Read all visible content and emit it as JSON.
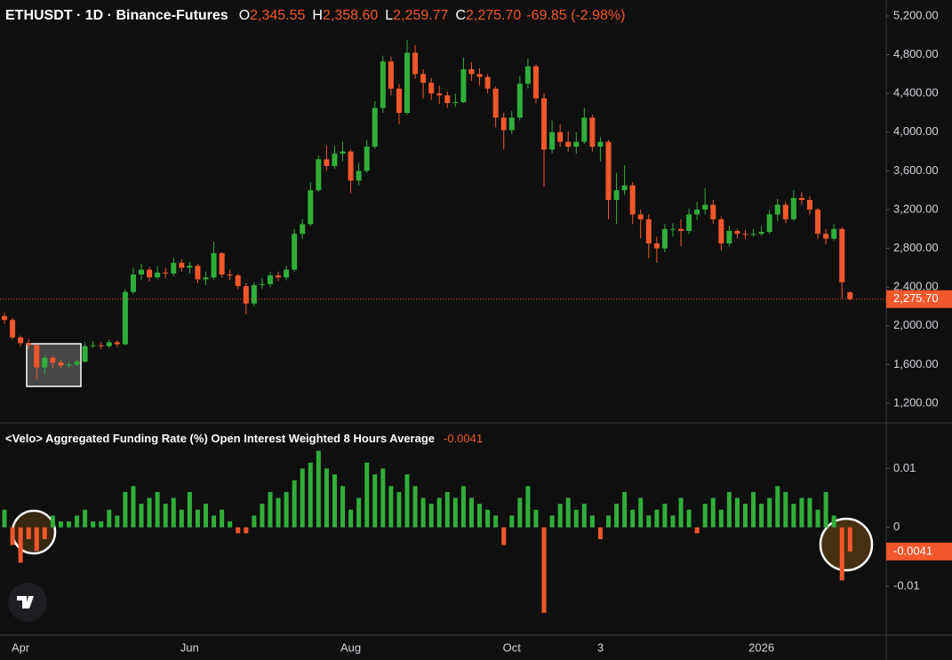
{
  "chart_data": [
    {
      "type": "candlestick",
      "title": "ETHUSDT · 1D · Binance-Futures",
      "header": [
        {
          "label": "O",
          "value": "2,345.55"
        },
        {
          "label": "H",
          "value": "2,358.60"
        },
        {
          "label": "L",
          "value": "2,259.77"
        },
        {
          "label": "C",
          "value": "2,275.70"
        }
      ],
      "change": "-69.85 (-2.98%)",
      "up_color": "#2fae3a",
      "down_color": "#f2572b",
      "categories": [
        null,
        null,
        "Apr",
        null,
        null,
        null,
        null,
        null,
        null,
        null,
        null,
        null,
        null,
        null,
        null,
        null,
        null,
        null,
        null,
        null,
        null,
        null,
        null,
        "Jun",
        null,
        null,
        null,
        null,
        null,
        null,
        null,
        null,
        null,
        null,
        null,
        null,
        null,
        null,
        null,
        null,
        null,
        null,
        null,
        "Aug",
        null,
        null,
        null,
        null,
        null,
        null,
        null,
        null,
        null,
        null,
        null,
        null,
        null,
        null,
        null,
        null,
        null,
        null,
        null,
        "Oct",
        null,
        null,
        null,
        null,
        null,
        null,
        null,
        null,
        null,
        null,
        "3",
        null,
        null,
        null,
        null,
        null,
        null,
        null,
        null,
        null,
        null,
        null,
        null,
        null,
        null,
        null,
        null,
        null,
        null,
        null,
        "2026",
        null,
        null,
        null,
        null,
        null,
        null,
        null,
        null,
        null,
        null,
        null
      ],
      "open": [
        2100,
        2060,
        1880,
        1820,
        1800,
        1570,
        1670,
        1620,
        1590,
        1600,
        1630,
        1790,
        1800,
        1790,
        1830,
        1810,
        2350,
        2530,
        2580,
        2500,
        2550,
        2540,
        2650,
        2600,
        2620,
        2480,
        2500,
        2750,
        2530,
        2520,
        2410,
        2230,
        2420,
        2430,
        2520,
        2500,
        2580,
        2950,
        3050,
        3400,
        3720,
        3650,
        3780,
        3800,
        3500,
        3600,
        3850,
        4250,
        4730,
        4450,
        4200,
        4820,
        4600,
        4510,
        4400,
        4380,
        4300,
        4310,
        4650,
        4600,
        4570,
        4450,
        4150,
        4020,
        4150,
        4500,
        4680,
        4350,
        3820,
        4000,
        3900,
        3850,
        3900,
        4150,
        3850,
        3900,
        3300,
        3400,
        3450,
        3150,
        3100,
        2850,
        2800,
        3000,
        3000,
        2980,
        3150,
        3200,
        3250,
        3100,
        2850,
        2980,
        2950,
        2940,
        2950,
        2970,
        3150,
        3250,
        3100,
        3320,
        3300,
        3200,
        2950,
        2900,
        3000,
        2345.55
      ],
      "high": [
        2130,
        2080,
        1900,
        1860,
        1810,
        1700,
        1690,
        1650,
        1630,
        1650,
        1830,
        1840,
        1830,
        1860,
        1850,
        2380,
        2600,
        2640,
        2610,
        2620,
        2600,
        2700,
        2690,
        2660,
        2640,
        2560,
        2870,
        2760,
        2580,
        2540,
        2440,
        2450,
        2490,
        2560,
        2560,
        2620,
        3000,
        3100,
        3480,
        3760,
        3860,
        3860,
        3900,
        3820,
        3680,
        3920,
        4320,
        4790,
        4780,
        4500,
        4950,
        4900,
        4650,
        4560,
        4480,
        4420,
        4400,
        4770,
        4720,
        4660,
        4600,
        4470,
        4200,
        4220,
        4580,
        4760,
        4700,
        4400,
        4120,
        4080,
        4010,
        4000,
        4250,
        4180,
        3950,
        3920,
        3580,
        3660,
        3480,
        3200,
        3150,
        2920,
        3050,
        3060,
        3100,
        3210,
        3280,
        3420,
        3300,
        3130,
        3030,
        3000,
        2990,
        3000,
        3030,
        3200,
        3310,
        3280,
        3400,
        3380,
        3340,
        3220,
        3000,
        3050,
        3020,
        2358.6
      ],
      "low": [
        2020,
        1860,
        1790,
        1760,
        1450,
        1500,
        1560,
        1560,
        1570,
        1580,
        1620,
        1770,
        1760,
        1770,
        1780,
        1800,
        2330,
        2470,
        2460,
        2480,
        2490,
        2510,
        2560,
        2540,
        2440,
        2420,
        2480,
        2500,
        2470,
        2380,
        2120,
        2200,
        2380,
        2400,
        2460,
        2470,
        2560,
        2900,
        3030,
        3380,
        3600,
        3620,
        3700,
        3370,
        3450,
        3580,
        3830,
        4200,
        4380,
        4080,
        4180,
        4550,
        4350,
        4330,
        4290,
        4250,
        4260,
        4300,
        4530,
        4480,
        4400,
        4050,
        3820,
        3980,
        4120,
        4450,
        4300,
        3440,
        3780,
        3850,
        3800,
        3780,
        3880,
        3800,
        3700,
        3100,
        3050,
        3350,
        3050,
        2900,
        2700,
        2650,
        2760,
        2920,
        2820,
        2950,
        3090,
        3150,
        3050,
        2780,
        2820,
        2900,
        2900,
        2920,
        2930,
        2950,
        3080,
        3060,
        3080,
        3250,
        3150,
        2900,
        2840,
        2880,
        2280,
        2259.77
      ],
      "close": [
        2060,
        1880,
        1820,
        1800,
        1570,
        1670,
        1620,
        1590,
        1600,
        1630,
        1790,
        1800,
        1790,
        1830,
        1810,
        2350,
        2530,
        2580,
        2500,
        2550,
        2540,
        2650,
        2600,
        2620,
        2480,
        2500,
        2750,
        2530,
        2520,
        2410,
        2230,
        2420,
        2430,
        2520,
        2500,
        2580,
        2950,
        3050,
        3400,
        3720,
        3650,
        3780,
        3800,
        3500,
        3600,
        3850,
        4250,
        4730,
        4450,
        4200,
        4820,
        4600,
        4510,
        4400,
        4380,
        4300,
        4310,
        4650,
        4600,
        4570,
        4450,
        4150,
        4020,
        4150,
        4500,
        4680,
        4350,
        3820,
        4000,
        3900,
        3850,
        3900,
        4150,
        3850,
        3900,
        3300,
        3400,
        3450,
        3150,
        3100,
        2850,
        2800,
        3000,
        3000,
        2980,
        3150,
        3200,
        3250,
        3100,
        2850,
        2980,
        2950,
        2940,
        2950,
        2970,
        3150,
        3250,
        3100,
        3320,
        3300,
        3200,
        2950,
        2900,
        3000,
        2450,
        2275.7
      ],
      "last_price": {
        "value": 2275.7,
        "label": "2,275.70"
      },
      "ylim": [
        998,
        5365
      ],
      "yticks": [
        {
          "value": 1200,
          "label": "1,200.00"
        },
        {
          "value": 1600,
          "label": "1,600.00"
        },
        {
          "value": 2000,
          "label": "2,000.00"
        },
        {
          "value": 2400,
          "label": "2,400.00"
        },
        {
          "value": 2800,
          "label": "2,800.00"
        },
        {
          "value": 3200,
          "label": "3,200.00"
        },
        {
          "value": 3600,
          "label": "3,600.00"
        },
        {
          "value": 4000,
          "label": "4,000.00"
        },
        {
          "value": 4400,
          "label": "4,400.00"
        },
        {
          "value": 4800,
          "label": "4,800.00"
        },
        {
          "value": 5200,
          "label": "5,200.00"
        }
      ]
    },
    {
      "type": "bar",
      "title": "<Velo> Aggregated Funding Rate (%) Open Interest Weighted 8 Hours Average",
      "current": -0.0041,
      "up_color": "#2fae3a",
      "down_color": "#f2572b",
      "values": [
        0.003,
        -0.003,
        -0.006,
        -0.002,
        -0.004,
        -0.002,
        0.002,
        0.001,
        0.001,
        0.002,
        0.003,
        0.001,
        0.001,
        0.003,
        0.002,
        0.006,
        0.007,
        0.004,
        0.005,
        0.006,
        0.004,
        0.005,
        0.003,
        0.006,
        0.003,
        0.004,
        0.002,
        0.003,
        0.001,
        -0.001,
        -0.001,
        0.002,
        0.004,
        0.006,
        0.005,
        0.006,
        0.008,
        0.01,
        0.011,
        0.013,
        0.01,
        0.009,
        0.007,
        0.003,
        0.005,
        0.011,
        0.009,
        0.01,
        0.007,
        0.006,
        0.009,
        0.007,
        0.005,
        0.004,
        0.005,
        0.006,
        0.005,
        0.007,
        0.005,
        0.004,
        0.003,
        0.002,
        -0.003,
        0.002,
        0.005,
        0.007,
        0.003,
        -0.0145,
        0.002,
        0.004,
        0.005,
        0.003,
        0.004,
        0.002,
        -0.002,
        0.002,
        0.004,
        0.006,
        0.003,
        0.005,
        0.002,
        0.003,
        0.004,
        0.002,
        0.005,
        0.003,
        -0.001,
        0.004,
        0.005,
        0.003,
        0.006,
        0.005,
        0.004,
        0.006,
        0.004,
        0.005,
        0.007,
        0.006,
        0.004,
        0.005,
        0.005,
        0.003,
        0.006,
        0.002,
        -0.009,
        -0.0041
      ],
      "ylim": [
        -0.0183,
        0.0176
      ],
      "yticks": [
        -0.01,
        0,
        0.01
      ]
    }
  ]
}
